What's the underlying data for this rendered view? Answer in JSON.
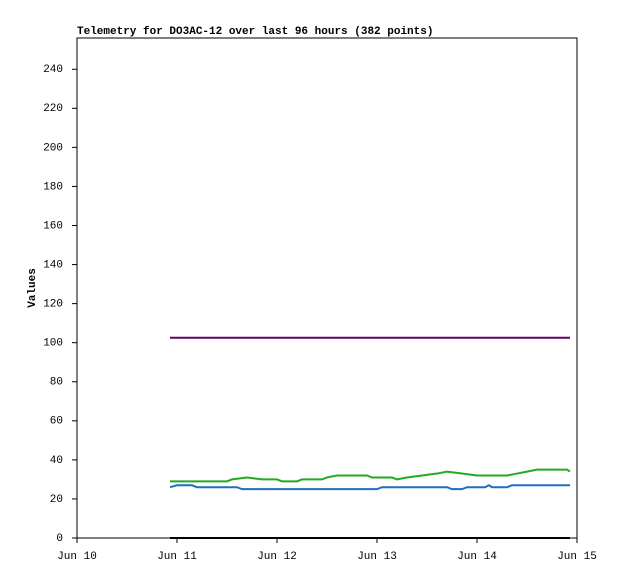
{
  "chart_data": {
    "type": "line",
    "title": "Telemetry for DO3AC-12 over last 96 hours (382 points)",
    "y_label": "Values",
    "xlim": [
      10,
      15
    ],
    "xticks": [
      {
        "value": 10,
        "label": "Jun 10"
      },
      {
        "value": 11,
        "label": "Jun 11"
      },
      {
        "value": 12,
        "label": "Jun 12"
      },
      {
        "value": 13,
        "label": "Jun 13"
      },
      {
        "value": 14,
        "label": "Jun 14"
      },
      {
        "value": 15,
        "label": "Jun 15"
      }
    ],
    "ylim": [
      0,
      256
    ],
    "yticks": [
      0,
      20,
      40,
      60,
      80,
      100,
      120,
      140,
      160,
      180,
      200,
      220,
      240
    ],
    "series": [
      {
        "color": "#660066",
        "x": [
          10.93,
          14.93
        ],
        "values": [
          102.5,
          102.5
        ]
      },
      {
        "color": "#000000",
        "x": [
          10.93,
          14.93
        ],
        "values": [
          0,
          0
        ]
      },
      {
        "color": "#22aa22",
        "x": [
          10.93,
          11.5,
          11.55,
          11.7,
          11.85,
          12.0,
          12.05,
          12.2,
          12.25,
          12.45,
          12.5,
          12.6,
          12.9,
          12.95,
          13.15,
          13.2,
          13.3,
          13.45,
          13.6,
          13.7,
          13.85,
          14.0,
          14.3,
          14.4,
          14.5,
          14.6,
          14.9,
          14.93
        ],
        "values": [
          29,
          29,
          30,
          31,
          30,
          30,
          29,
          29,
          30,
          30,
          31,
          32,
          32,
          31,
          31,
          30,
          31,
          32,
          33,
          34,
          33,
          32,
          32,
          33,
          34,
          35,
          35,
          34
        ]
      },
      {
        "color": "#1f6fbf",
        "x": [
          10.93,
          11.0,
          11.15,
          11.2,
          11.6,
          11.65,
          12.0,
          12.1,
          13.0,
          13.05,
          13.7,
          13.75,
          13.85,
          13.9,
          14.08,
          14.12,
          14.15,
          14.3,
          14.35,
          14.93
        ],
        "values": [
          26,
          27,
          27,
          26,
          26,
          25,
          25,
          25,
          25,
          26,
          26,
          25,
          25,
          26,
          26,
          27,
          26,
          26,
          27,
          27
        ]
      }
    ]
  }
}
